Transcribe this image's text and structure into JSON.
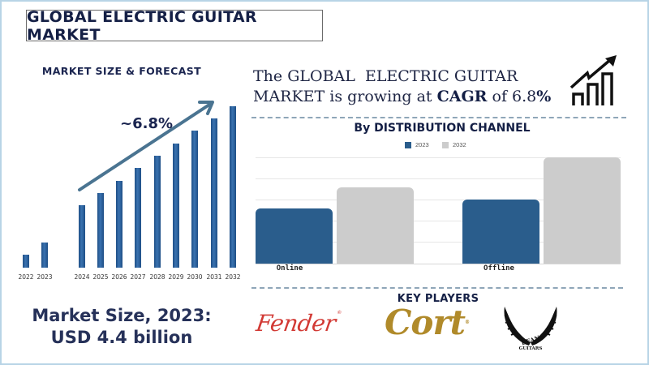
{
  "header": {
    "title": "GLOBAL ELECTRIC GUITAR MARKET"
  },
  "forecast": {
    "title": "MARKET SIZE & FORECAST",
    "cagr_label": "~6.8%",
    "market_size_line1": "Market Size, 2023:",
    "market_size_line2": "USD 4.4 billion"
  },
  "headline": {
    "line1": "The GLOBAL  ELECTRIC GUITAR",
    "line2_pre": "MARKET is growing at ",
    "line2_bold": "CAGR",
    "line2_mid": " of 6.8",
    "line2_pct": "%",
    "icon": "growth-chart-icon"
  },
  "distribution": {
    "title": "By DISTRIBUTION CHANNEL",
    "legend": [
      {
        "label": "2023",
        "color": "#2a5d8c"
      },
      {
        "label": "2032",
        "color": "#cccccc"
      }
    ]
  },
  "key_players": {
    "title": "KEY PLAYERS",
    "brands": [
      "Fender",
      "Cort",
      "DEAN GUITARS"
    ],
    "fender": "Fender",
    "cort": "Cort",
    "dean_line1": "DEAN",
    "dean_line2": "GUITARS"
  },
  "colors": {
    "navy": "#141f45",
    "bar_blue": "#2a5d8c",
    "bar_grey": "#cccccc",
    "fender_red": "#d23a35",
    "cort_gold": "#b08a2a",
    "frame": "#b8d4e6"
  },
  "chart_data": [
    {
      "type": "bar",
      "title": "MARKET SIZE & FORECAST",
      "categories": [
        "2022",
        "2023",
        "2024",
        "2025",
        "2026",
        "2027",
        "2028",
        "2029",
        "2030",
        "2031",
        "2032"
      ],
      "values": [
        16,
        31,
        77,
        92,
        107,
        123,
        138,
        153,
        169,
        184,
        199
      ],
      "units": "relative bar height (no axis values shown)",
      "annotations": [
        "~6.8%",
        "Market Size, 2023: USD 4.4 billion"
      ],
      "xlabel": "",
      "ylabel": "",
      "grid": false
    },
    {
      "type": "bar",
      "title": "By DISTRIBUTION CHANNEL",
      "categories": [
        "Online",
        "Offline"
      ],
      "series": [
        {
          "name": "2023",
          "values": [
            68,
            79
          ]
        },
        {
          "name": "2032",
          "values": [
            94,
            131
          ]
        }
      ],
      "units": "relative bar height (no axis values shown)",
      "legend_position": "top",
      "grid": true,
      "xlabel": "",
      "ylabel": ""
    }
  ]
}
